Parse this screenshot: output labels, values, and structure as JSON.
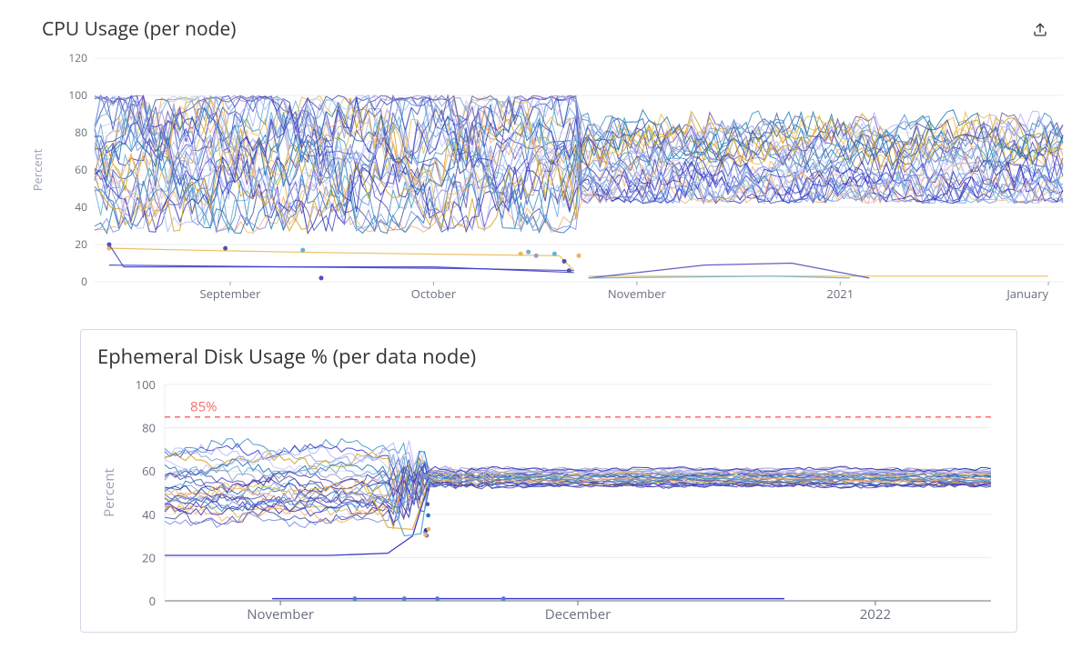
{
  "export_icon_color": "#343741",
  "grid_color": "#e8ecf0",
  "axis_text_color": "#69707d",
  "axis_label_color": "#98a2b3",
  "cpu_chart": {
    "title": "CPU Usage (per node)",
    "ylabel": "Percent",
    "ylim": [
      0,
      120
    ],
    "ytick_step": 20,
    "x_ticks": [
      "September",
      "October",
      "November",
      "2021",
      "January"
    ],
    "x_tick_positions": [
      0.14,
      0.35,
      0.56,
      0.77,
      0.985
    ],
    "transition_x": 0.5,
    "background": "#ffffff",
    "palette": [
      "#1f77b4",
      "#6baed6",
      "#9e9ac8",
      "#4f4fbf",
      "#6a51a3",
      "#2f2fb0",
      "#e7ba52",
      "#fdae6b",
      "#5254a3",
      "#7b8ce3",
      "#4292c6",
      "#3b3bcc",
      "#b5b5ff",
      "#8ca0d7",
      "#d4a017",
      "#c7c7ff"
    ],
    "dense_series_count": 34,
    "dense_band_pre": [
      32,
      100
    ],
    "dense_band_post": [
      46,
      92
    ],
    "low_series": [
      {
        "points": [
          [
            0.015,
            18
          ],
          [
            0.1,
            17
          ],
          [
            0.2,
            16
          ],
          [
            0.33,
            15
          ],
          [
            0.48,
            14
          ],
          [
            0.495,
            6
          ]
        ],
        "color": "#e7ba52",
        "dots": [
          [
            0.015,
            18
          ]
        ]
      },
      {
        "points": [
          [
            0.015,
            20
          ],
          [
            0.03,
            8
          ],
          [
            0.2,
            8
          ],
          [
            0.4,
            7
          ],
          [
            0.495,
            6
          ]
        ],
        "color": "#4f4fbf",
        "dots": [
          [
            0.015,
            20
          ],
          [
            0.234,
            2
          ]
        ]
      },
      {
        "points": [
          [
            0.015,
            9
          ],
          [
            0.2,
            8
          ],
          [
            0.35,
            8
          ],
          [
            0.495,
            5
          ]
        ],
        "color": "#3b3bcc",
        "dots": []
      },
      {
        "points": [
          [
            0.51,
            3
          ],
          [
            0.6,
            3
          ],
          [
            0.985,
            3
          ]
        ],
        "color": "#e7ba52",
        "dots": []
      },
      {
        "points": [
          [
            0.51,
            2
          ],
          [
            0.63,
            9
          ],
          [
            0.72,
            10
          ],
          [
            0.8,
            2
          ]
        ],
        "color": "#4f4fbf",
        "dots": []
      },
      {
        "points": [
          [
            0.51,
            2
          ],
          [
            0.7,
            3
          ],
          [
            0.78,
            2
          ]
        ],
        "color": "#6baed6",
        "dots": []
      }
    ],
    "scatter_dots": [
      {
        "x": 0.135,
        "y": 18,
        "c": "#5254a3"
      },
      {
        "x": 0.215,
        "y": 17,
        "c": "#6baed6"
      },
      {
        "x": 0.44,
        "y": 15,
        "c": "#e7ba52"
      },
      {
        "x": 0.448,
        "y": 16,
        "c": "#6baed6"
      },
      {
        "x": 0.456,
        "y": 14,
        "c": "#9e9ac8"
      },
      {
        "x": 0.475,
        "y": 15,
        "c": "#6baed6"
      },
      {
        "x": 0.485,
        "y": 11,
        "c": "#4f4fbf"
      },
      {
        "x": 0.49,
        "y": 6,
        "c": "#5254a3"
      },
      {
        "x": 0.5,
        "y": 14,
        "c": "#e7ba52"
      }
    ]
  },
  "disk_chart": {
    "title": "Ephemeral Disk Usage % (per data node)",
    "ylabel": "Percent",
    "ylim": [
      0,
      100
    ],
    "ytick_step": 20,
    "x_ticks": [
      "November",
      "December",
      "2022"
    ],
    "x_tick_positions": [
      0.14,
      0.5,
      0.86
    ],
    "threshold": {
      "value": 85,
      "label": "85%",
      "color": "#ff6b6b"
    },
    "transition_x": 0.32,
    "background": "#ffffff",
    "palette": [
      "#1f77b4",
      "#6baed6",
      "#9e9ac8",
      "#4f4fbf",
      "#6a51a3",
      "#2f2fb0",
      "#e7ba52",
      "#fdae6b",
      "#5254a3",
      "#7b8ce3",
      "#4292c6",
      "#3b3bcc",
      "#b5b5ff",
      "#8ca0d7",
      "#d4a017",
      "#c7c7ff"
    ],
    "dense_series_count": 28,
    "dense_band_pre": [
      36,
      72
    ],
    "dense_band_post": [
      53,
      61
    ],
    "outlier_series": [
      {
        "points": [
          [
            0.0,
            21
          ],
          [
            0.1,
            21
          ],
          [
            0.2,
            21
          ],
          [
            0.27,
            22
          ],
          [
            0.3,
            30
          ],
          [
            0.32,
            55
          ]
        ],
        "color": "#3b3bcc"
      },
      {
        "points": [
          [
            0.24,
            56
          ],
          [
            0.27,
            34
          ],
          [
            0.3,
            33
          ],
          [
            0.32,
            56
          ]
        ],
        "color": "#e7ba52"
      },
      {
        "points": [
          [
            0.26,
            60
          ],
          [
            0.29,
            30
          ],
          [
            0.31,
            31
          ],
          [
            0.32,
            56
          ]
        ],
        "color": "#6baed6"
      }
    ],
    "zero_line": {
      "xstart": 0.13,
      "xend": 0.75,
      "y": 1,
      "color": "#3b3bcc"
    },
    "zero_dots": [
      [
        0.23,
        1
      ],
      [
        0.29,
        1
      ],
      [
        0.33,
        1
      ],
      [
        0.41,
        1
      ]
    ],
    "collapse_dots_x": 0.318
  }
}
